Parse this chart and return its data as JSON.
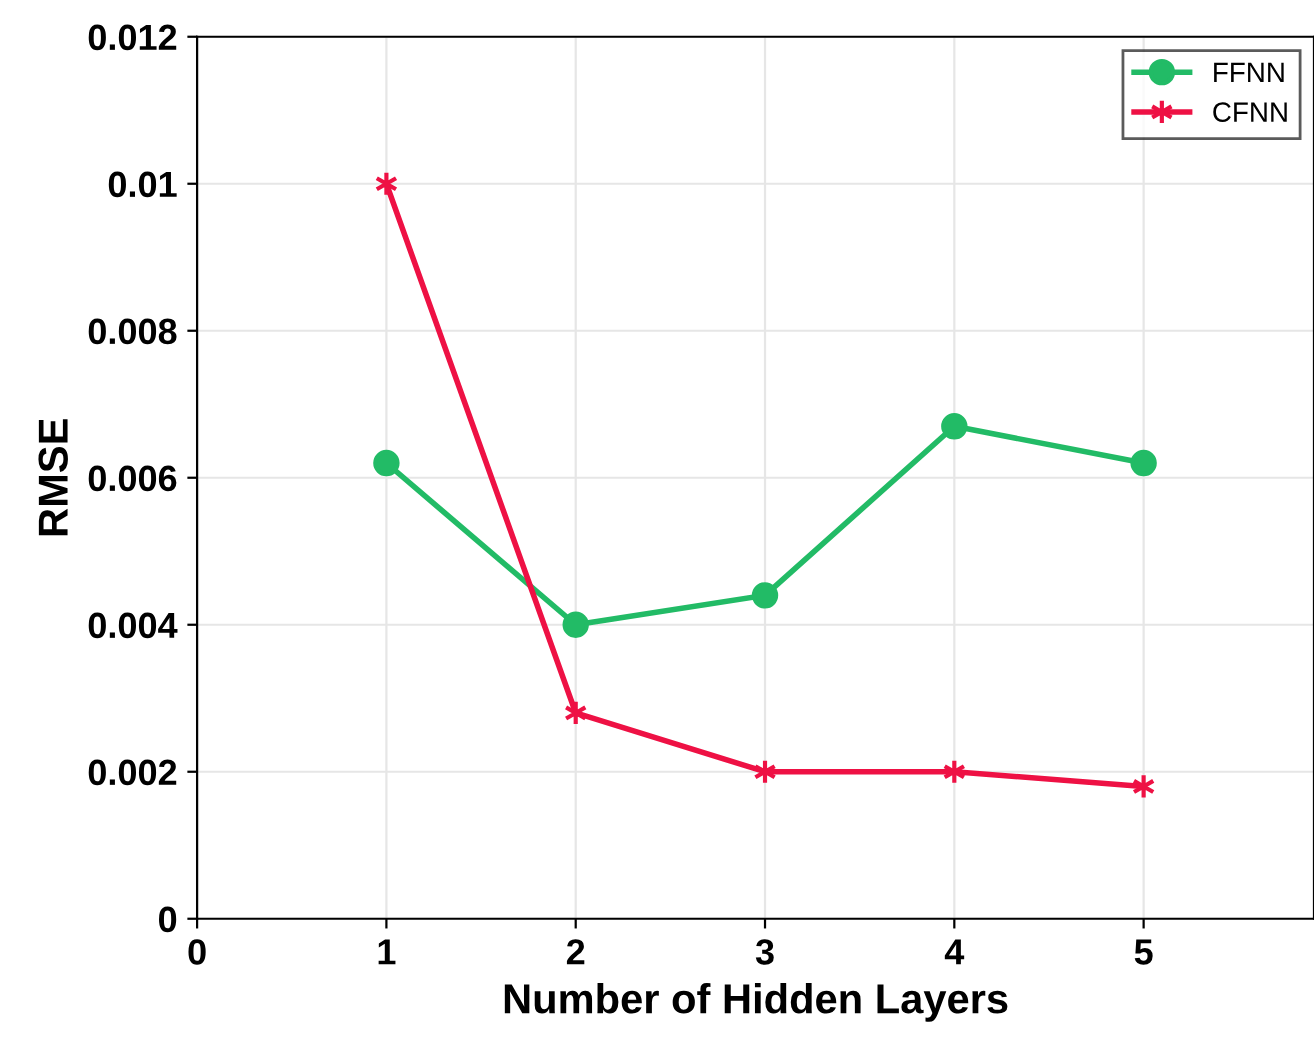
{
  "chart_data": {
    "type": "line",
    "xlabel": "Number of Hidden Layers",
    "ylabel": "RMSE",
    "x": [
      1,
      2,
      3,
      4,
      5
    ],
    "series": [
      {
        "name": "FFNN",
        "color": "#22bb66",
        "marker": "circle",
        "values": [
          0.0062,
          0.004,
          0.0044,
          0.0067,
          0.0062
        ]
      },
      {
        "name": "CFNN",
        "color": "#ee1144",
        "marker": "cross",
        "values": [
          0.01,
          0.0028,
          0.002,
          0.002,
          0.0018
        ]
      }
    ],
    "xlim": [
      0,
      5.9
    ],
    "xticks": [
      0,
      1,
      2,
      3,
      4,
      5
    ],
    "ylim": [
      0,
      0.012
    ],
    "yticks": [
      0,
      0.002,
      0.004,
      0.006,
      0.008,
      0.01,
      0.012
    ],
    "grid": true,
    "legend": "top right",
    "line_style": "solid"
  }
}
